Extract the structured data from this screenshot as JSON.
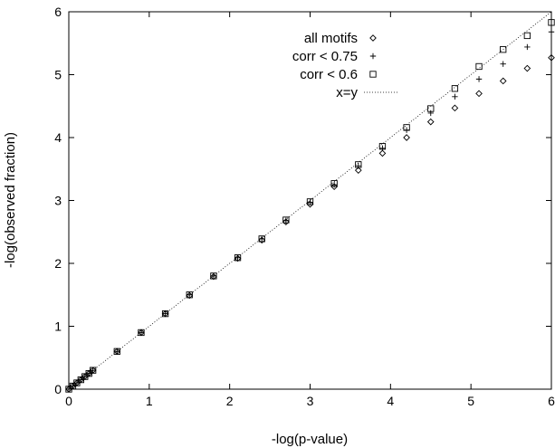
{
  "chart_data": {
    "type": "scatter",
    "title": "",
    "xlabel": "-log(p-value)",
    "ylabel": "-log(observed fraction)",
    "xlim": [
      0,
      6
    ],
    "ylim": [
      0,
      6
    ],
    "xticks": [
      "0",
      "1",
      "2",
      "3",
      "4",
      "5",
      "6"
    ],
    "yticks": [
      "0",
      "1",
      "2",
      "3",
      "4",
      "5",
      "6"
    ],
    "grid": false,
    "legend_position": "top-right",
    "series": [
      {
        "name": "all motifs",
        "marker": "diamond",
        "x": [
          0.0,
          0.05,
          0.1,
          0.15,
          0.2,
          0.25,
          0.3,
          0.6,
          0.9,
          1.2,
          1.5,
          1.8,
          2.1,
          2.4,
          2.7,
          3.0,
          3.3,
          3.6,
          3.9,
          4.2,
          4.5,
          4.8,
          5.1,
          5.4,
          5.7,
          6.0
        ],
        "y": [
          0.0,
          0.05,
          0.1,
          0.15,
          0.2,
          0.25,
          0.3,
          0.6,
          0.9,
          1.2,
          1.49,
          1.79,
          2.08,
          2.37,
          2.66,
          2.94,
          3.22,
          3.48,
          3.75,
          4.0,
          4.25,
          4.47,
          4.7,
          4.9,
          5.1,
          5.27
        ]
      },
      {
        "name": "corr < 0.75",
        "marker": "plus",
        "x": [
          0.0,
          0.05,
          0.1,
          0.15,
          0.2,
          0.25,
          0.3,
          0.6,
          0.9,
          1.2,
          1.5,
          1.8,
          2.1,
          2.4,
          2.7,
          3.0,
          3.3,
          3.6,
          3.9,
          4.2,
          4.5,
          4.8,
          5.1,
          5.4,
          5.7,
          6.0
        ],
        "y": [
          0.0,
          0.05,
          0.1,
          0.15,
          0.2,
          0.25,
          0.3,
          0.6,
          0.9,
          1.2,
          1.5,
          1.8,
          2.09,
          2.39,
          2.68,
          2.97,
          3.25,
          3.55,
          3.83,
          4.12,
          4.39,
          4.65,
          4.93,
          5.17,
          5.44,
          5.68
        ]
      },
      {
        "name": "corr < 0.6",
        "marker": "square",
        "x": [
          0.0,
          0.05,
          0.1,
          0.15,
          0.2,
          0.25,
          0.3,
          0.6,
          0.9,
          1.2,
          1.5,
          1.8,
          2.1,
          2.4,
          2.7,
          3.0,
          3.3,
          3.6,
          3.9,
          4.2,
          4.5,
          4.8,
          5.1,
          5.4,
          5.7,
          6.0
        ],
        "y": [
          0.0,
          0.05,
          0.1,
          0.15,
          0.2,
          0.25,
          0.3,
          0.6,
          0.9,
          1.2,
          1.5,
          1.8,
          2.09,
          2.39,
          2.69,
          2.98,
          3.27,
          3.57,
          3.86,
          4.16,
          4.46,
          4.78,
          5.13,
          5.4,
          5.62,
          5.83
        ]
      }
    ],
    "reference_line": {
      "name": "x=y",
      "style": "dotted"
    }
  }
}
